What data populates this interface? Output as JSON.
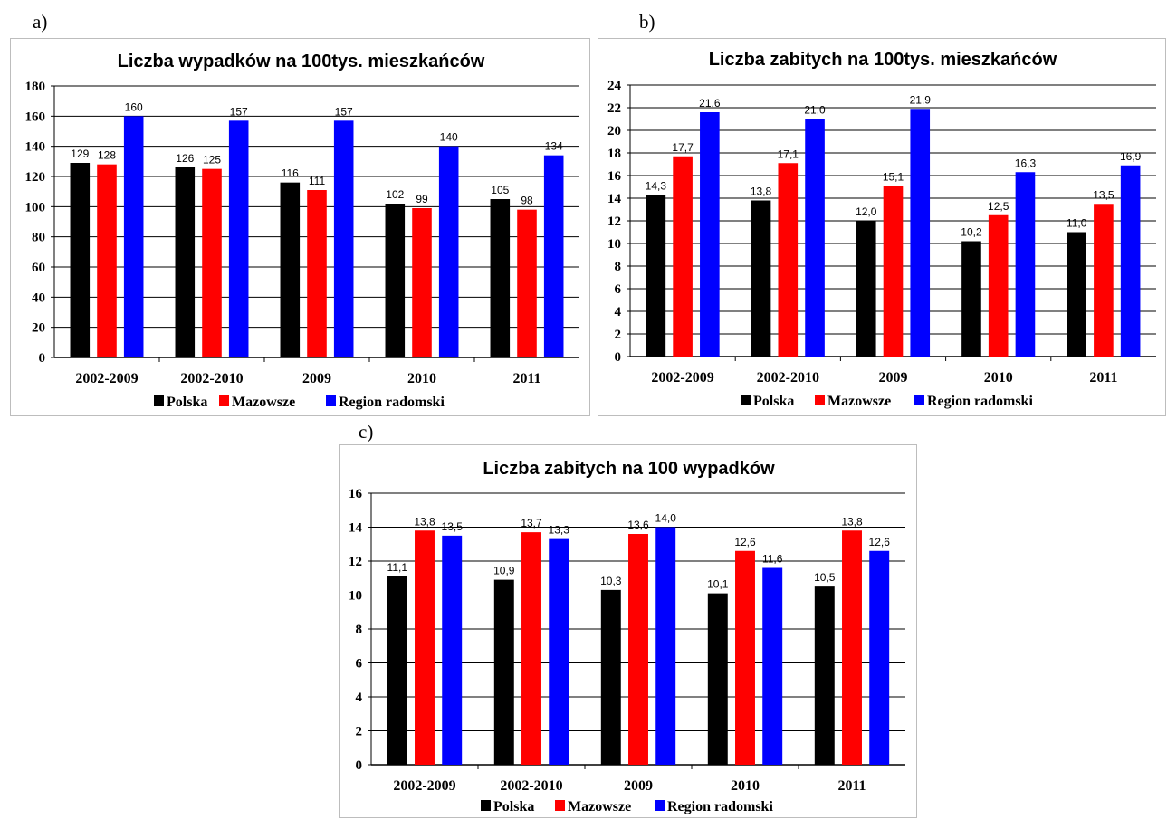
{
  "panel_labels": [
    "a)",
    "b)",
    "c)"
  ],
  "legend": {
    "entries": [
      {
        "name": "Polska",
        "color": "#000000"
      },
      {
        "name": "Mazowsze",
        "color": "#ff0000"
      },
      {
        "name": "Region radomski",
        "color": "#0000ff"
      }
    ],
    "placement": "bottom"
  },
  "chart_data": [
    {
      "type": "bar",
      "title": "Liczba wypadków na 100tys. mieszkańców",
      "xlabel": "",
      "ylabel": "",
      "categories": [
        "2002-2009",
        "2002-2010",
        "2009",
        "2010",
        "2011"
      ],
      "ylim": [
        0,
        180
      ],
      "yticks": [
        "0",
        "20",
        "40",
        "60",
        "80",
        "100",
        "120",
        "140",
        "160",
        "180"
      ],
      "grid": true,
      "series": [
        {
          "name": "Polska",
          "color": "#000000",
          "values": [
            129,
            126,
            116,
            102,
            105
          ],
          "labels": [
            "129",
            "126",
            "116",
            "102",
            "105"
          ]
        },
        {
          "name": "Mazowsze",
          "color": "#ff0000",
          "values": [
            128,
            125,
            111,
            99,
            98
          ],
          "labels": [
            "128",
            "125",
            "111",
            "99",
            "98"
          ]
        },
        {
          "name": "Region radomski",
          "color": "#0000ff",
          "values": [
            160,
            157,
            157,
            140,
            134
          ],
          "labels": [
            "160",
            "157",
            "157",
            "140",
            "134"
          ]
        }
      ]
    },
    {
      "type": "bar",
      "title": "Liczba zabitych na 100tys. mieszkańców",
      "xlabel": "",
      "ylabel": "",
      "categories": [
        "2002-2009",
        "2002-2010",
        "2009",
        "2010",
        "2011"
      ],
      "ylim": [
        0,
        24
      ],
      "yticks": [
        "0",
        "2",
        "4",
        "6",
        "8",
        "10",
        "12",
        "14",
        "16",
        "18",
        "20",
        "22",
        "24"
      ],
      "grid": true,
      "series": [
        {
          "name": "Polska",
          "color": "#000000",
          "values": [
            14.3,
            13.8,
            12.0,
            10.2,
            11.0
          ],
          "labels": [
            "14,3",
            "13,8",
            "12,0",
            "10,2",
            "11,0"
          ]
        },
        {
          "name": "Mazowsze",
          "color": "#ff0000",
          "values": [
            17.7,
            17.1,
            15.1,
            12.5,
            13.5
          ],
          "labels": [
            "17,7",
            "17,1",
            "15,1",
            "12,5",
            "13,5"
          ]
        },
        {
          "name": "Region radomski",
          "color": "#0000ff",
          "values": [
            21.6,
            21.0,
            21.9,
            16.3,
            16.9
          ],
          "labels": [
            "21,6",
            "21,0",
            "21,9",
            "16,3",
            "16,9"
          ]
        }
      ]
    },
    {
      "type": "bar",
      "title": "Liczba zabitych na 100 wypadków",
      "xlabel": "",
      "ylabel": "",
      "categories": [
        "2002-2009",
        "2002-2010",
        "2009",
        "2010",
        "2011"
      ],
      "ylim": [
        0,
        16
      ],
      "yticks": [
        "0",
        "2",
        "4",
        "6",
        "8",
        "10",
        "12",
        "14",
        "16"
      ],
      "grid": true,
      "series": [
        {
          "name": "Polska",
          "color": "#000000",
          "values": [
            11.1,
            10.9,
            10.3,
            10.1,
            10.5
          ],
          "labels": [
            "11,1",
            "10,9",
            "10,3",
            "10,1",
            "10,5"
          ]
        },
        {
          "name": "Mazowsze",
          "color": "#ff0000",
          "values": [
            13.8,
            13.7,
            13.6,
            12.6,
            13.8
          ],
          "labels": [
            "13,8",
            "13,7",
            "13,6",
            "12,6",
            "13,8"
          ]
        },
        {
          "name": "Region radomski",
          "color": "#0000ff",
          "values": [
            13.5,
            13.3,
            14.0,
            11.6,
            12.6
          ],
          "labels": [
            "13,5",
            "13,3",
            "14,0",
            "11,6",
            "12,6"
          ]
        }
      ]
    }
  ]
}
